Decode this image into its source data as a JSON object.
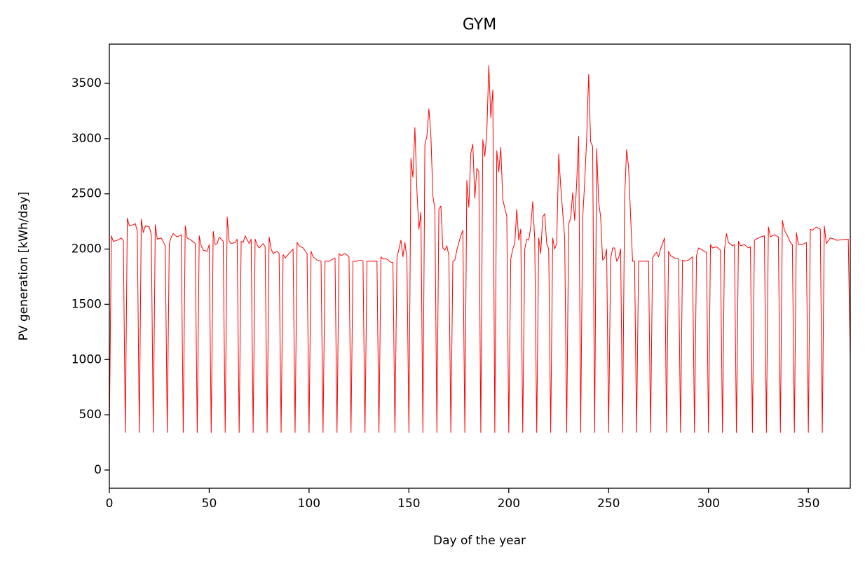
{
  "chart_data": {
    "type": "line",
    "title": "GYM",
    "x_label": "Day of the year",
    "y_label": "PV generation [kWh/day]",
    "color": "#ff0000",
    "xlim": [
      0,
      371
    ],
    "xticks": [
      0,
      50,
      100,
      150,
      200,
      250,
      300,
      350
    ],
    "ylim": [
      -165,
      3855
    ],
    "yticks": [
      0,
      500,
      1000,
      1500,
      2000,
      2500,
      3000,
      3500
    ],
    "x": [
      0,
      1,
      2,
      4,
      6,
      7,
      8,
      9,
      10,
      12,
      13,
      14,
      15,
      16,
      17,
      18,
      20,
      21,
      22,
      23,
      24,
      26,
      28,
      29,
      30,
      31,
      32,
      34,
      36,
      37,
      38,
      39,
      41,
      43,
      44,
      45,
      46,
      47,
      49,
      50,
      51,
      52,
      53,
      54,
      55,
      57,
      58,
      59,
      60,
      61,
      63,
      64,
      65,
      66,
      67,
      68,
      70,
      71,
      72,
      73,
      74,
      75,
      77,
      78,
      79,
      80,
      81,
      82,
      84,
      85,
      86,
      87,
      88,
      90,
      92,
      93,
      94,
      95,
      97,
      99,
      100,
      101,
      102,
      104,
      106,
      107,
      108,
      110,
      112,
      113,
      114,
      115,
      116,
      118,
      120,
      121,
      122,
      124,
      126,
      127,
      128,
      129,
      131,
      133,
      134,
      135,
      136,
      137,
      139,
      141,
      142,
      143,
      144,
      146,
      147,
      148,
      149,
      150,
      151,
      152,
      153,
      154,
      155,
      156,
      157,
      158,
      159,
      160,
      161,
      162,
      163,
      164,
      165,
      166,
      167,
      168,
      169,
      170,
      171,
      172,
      173,
      174,
      175,
      176,
      177,
      178,
      179,
      180,
      181,
      182,
      183,
      184,
      185,
      186,
      187,
      188,
      189,
      190,
      191,
      192,
      193,
      194,
      195,
      196,
      197,
      198,
      199,
      200,
      201,
      202,
      203,
      204,
      205,
      206,
      207,
      208,
      209,
      210,
      211,
      212,
      213,
      214,
      215,
      216,
      217,
      218,
      219,
      220,
      221,
      222,
      223,
      224,
      225,
      226,
      228,
      229,
      230,
      231,
      232,
      233,
      234,
      235,
      236,
      237,
      238,
      239,
      240,
      241,
      242,
      243,
      244,
      245,
      246,
      247,
      248,
      249,
      250,
      251,
      252,
      253,
      254,
      255,
      256,
      257,
      258,
      259,
      260,
      261,
      262,
      263,
      264,
      265,
      267,
      269,
      270,
      271,
      272,
      273,
      274,
      275,
      276,
      278,
      279,
      280,
      281,
      283,
      285,
      286,
      287,
      288,
      290,
      292,
      293,
      294,
      295,
      297,
      299,
      300,
      301,
      302,
      304,
      306,
      307,
      308,
      309,
      310,
      312,
      313,
      314,
      315,
      316,
      318,
      320,
      321,
      322,
      323,
      324,
      326,
      328,
      329,
      330,
      331,
      333,
      335,
      336,
      337,
      338,
      339,
      341,
      342,
      343,
      344,
      345,
      347,
      349,
      350,
      351,
      352,
      354,
      356,
      357,
      358,
      359,
      361,
      363,
      364,
      370,
      371
    ],
    "values": [
      340,
      2120,
      2070,
      2080,
      2100,
      2080,
      340,
      2280,
      2210,
      2220,
      2230,
      2160,
      340,
      2270,
      2150,
      2210,
      2200,
      2130,
      340,
      2220,
      2090,
      2100,
      2030,
      340,
      2050,
      2110,
      2140,
      2110,
      2130,
      340,
      2210,
      2100,
      2080,
      2050,
      340,
      2120,
      2030,
      1990,
      1980,
      2040,
      340,
      2160,
      2040,
      2050,
      2110,
      2070,
      340,
      2290,
      2070,
      2050,
      2060,
      2090,
      340,
      2070,
      2060,
      2120,
      2050,
      2090,
      340,
      2090,
      2040,
      2010,
      2050,
      2020,
      340,
      2110,
      2000,
      1960,
      1980,
      1960,
      340,
      1950,
      1920,
      1960,
      2000,
      340,
      2060,
      2030,
      2010,
      1960,
      340,
      1980,
      1930,
      1900,
      1890,
      340,
      1890,
      1890,
      1910,
      1920,
      340,
      1960,
      1940,
      1960,
      1930,
      340,
      1890,
      1890,
      1900,
      1890,
      340,
      1890,
      1890,
      1890,
      1890,
      340,
      1930,
      1910,
      1910,
      1880,
      1880,
      340,
      1920,
      2080,
      1930,
      2060,
      1910,
      340,
      2820,
      2650,
      3100,
      2530,
      2180,
      2330,
      340,
      2950,
      3020,
      3270,
      3030,
      2480,
      2360,
      340,
      2360,
      2390,
      2010,
      1990,
      2030,
      1940,
      340,
      1890,
      1900,
      1990,
      2060,
      2120,
      2170,
      340,
      2620,
      2380,
      2870,
      2950,
      2460,
      2730,
      2700,
      340,
      2990,
      2840,
      3050,
      3660,
      3190,
      3440,
      340,
      2890,
      2700,
      2920,
      2450,
      2370,
      2300,
      340,
      1910,
      2000,
      2050,
      2360,
      2080,
      2180,
      340,
      2000,
      2090,
      2080,
      2200,
      2430,
      2090,
      340,
      2100,
      1960,
      2290,
      2320,
      2050,
      2000,
      340,
      2100,
      2000,
      2050,
      2860,
      2570,
      2100,
      340,
      2230,
      2280,
      2510,
      2260,
      2600,
      3020,
      340,
      2280,
      2600,
      3000,
      3580,
      2970,
      2930,
      340,
      2910,
      2430,
      2290,
      1900,
      1920,
      2000,
      340,
      1910,
      2010,
      2010,
      1890,
      1920,
      2000,
      340,
      2460,
      2900,
      2740,
      2300,
      1890,
      1890,
      340,
      1890,
      1890,
      1890,
      1890,
      340,
      1920,
      1950,
      1970,
      1930,
      2000,
      2100,
      340,
      1980,
      1940,
      1920,
      1910,
      340,
      1900,
      1890,
      1900,
      1930,
      340,
      1940,
      2010,
      1990,
      1970,
      340,
      2040,
      2010,
      2020,
      1990,
      340,
      1990,
      2140,
      2060,
      2030,
      2040,
      340,
      2070,
      2030,
      2040,
      2010,
      2020,
      340,
      2080,
      2090,
      2110,
      2120,
      340,
      2200,
      2110,
      2130,
      2110,
      340,
      2260,
      2170,
      2140,
      2060,
      2040,
      340,
      2150,
      2040,
      2040,
      2060,
      340,
      2180,
      2170,
      2200,
      2180,
      340,
      2210,
      2050,
      2100,
      2090,
      2080,
      2090,
      1000
    ]
  }
}
